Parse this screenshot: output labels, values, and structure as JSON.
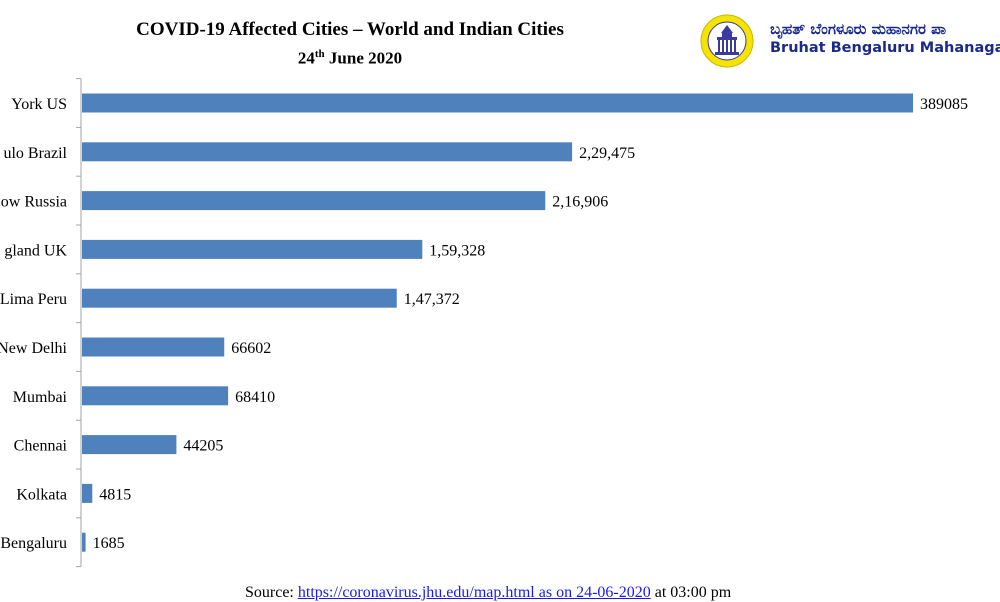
{
  "header": {
    "title_line1": "COVID-19 Affected Cities – World and Indian Cities",
    "title_date_day": "24",
    "title_date_suffix": "th",
    "title_date_rest": " June 2020"
  },
  "logo": {
    "kannada_text": "ಬೃಹತ್ ಬೆಂಗಳೂರು ಮಹಾನಗರ ಪಾ",
    "english_text": "Bruhat Bengaluru Mahanagara",
    "icon": "vidhana-soudha-emblem-icon",
    "ring_color": "#f5e400",
    "text_color": "#1a2a8c"
  },
  "source": {
    "prefix": "Source: ",
    "link_text": "https://coronavirus.jhu.edu/map.html as on 24-06-2020",
    "suffix": " at 03:00 pm"
  },
  "chart_data": {
    "type": "bar",
    "orientation": "horizontal",
    "bar_color": "#4f81bd",
    "categories": [
      "York US",
      "ulo Brazil",
      "ow Russia",
      "gland UK",
      "Lima Peru",
      "New Delhi",
      "Mumbai",
      "Chennai",
      "Kolkata",
      "Bengaluru"
    ],
    "values": [
      389085,
      229475,
      216906,
      159328,
      147372,
      66602,
      68410,
      44205,
      4815,
      1685
    ],
    "data_labels": [
      "389085",
      "2,29,475",
      "2,16,906",
      "1,59,328",
      "1,47,372",
      "66602",
      "68410",
      "44205",
      "4815",
      "1685"
    ],
    "xlim": [
      0,
      389085
    ],
    "grid": false,
    "legend": "none"
  }
}
